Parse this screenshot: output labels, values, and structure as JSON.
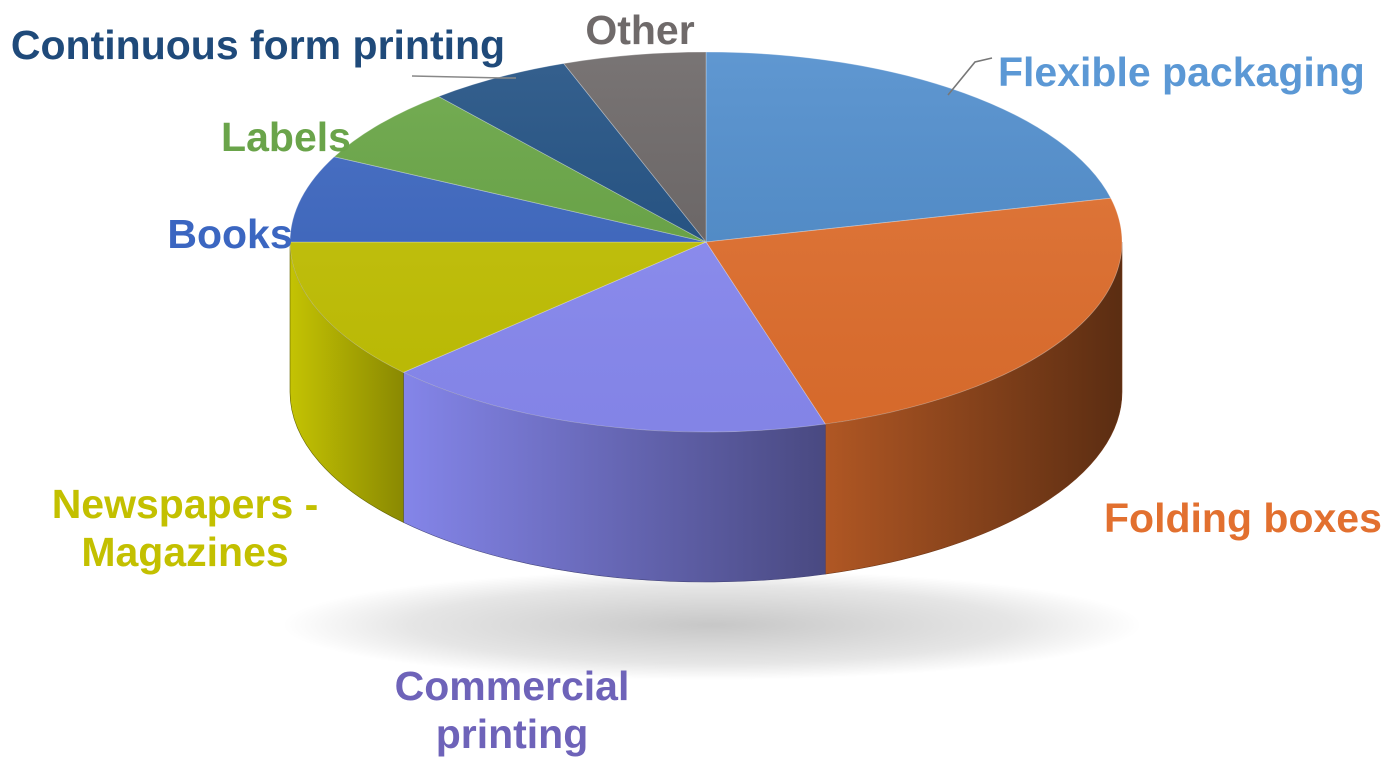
{
  "chart_data": {
    "type": "pie",
    "style": "3d",
    "title": "",
    "slices": [
      {
        "label": "Flexible packaging",
        "value": 23,
        "color": "#4e8ccc",
        "text_color": "#5b98d5"
      },
      {
        "label": "Folding boxes",
        "value": 26,
        "color": "#e3702e",
        "text_color": "#e2702f"
      },
      {
        "label": "Commercial printing",
        "value": 19,
        "color": "#8b8cf5",
        "text_color": "#6e63b9"
      },
      {
        "label": "Newspapers - Magazines",
        "value": 13,
        "color": "#c4c303",
        "text_color": "#c3c000"
      },
      {
        "label": "Books",
        "value": 8,
        "color": "#3b66c1",
        "text_color": "#3b66c1"
      },
      {
        "label": "Labels",
        "value": 7,
        "color": "#67a543",
        "text_color": "#6aa44a"
      },
      {
        "label": "Continuous form printing",
        "value": 6,
        "color": "#1f4f82",
        "text_color": "#1f4a7a"
      },
      {
        "label": "Other",
        "value": 6,
        "color": "#6a6565",
        "text_color": "#6f6a6a"
      }
    ]
  }
}
